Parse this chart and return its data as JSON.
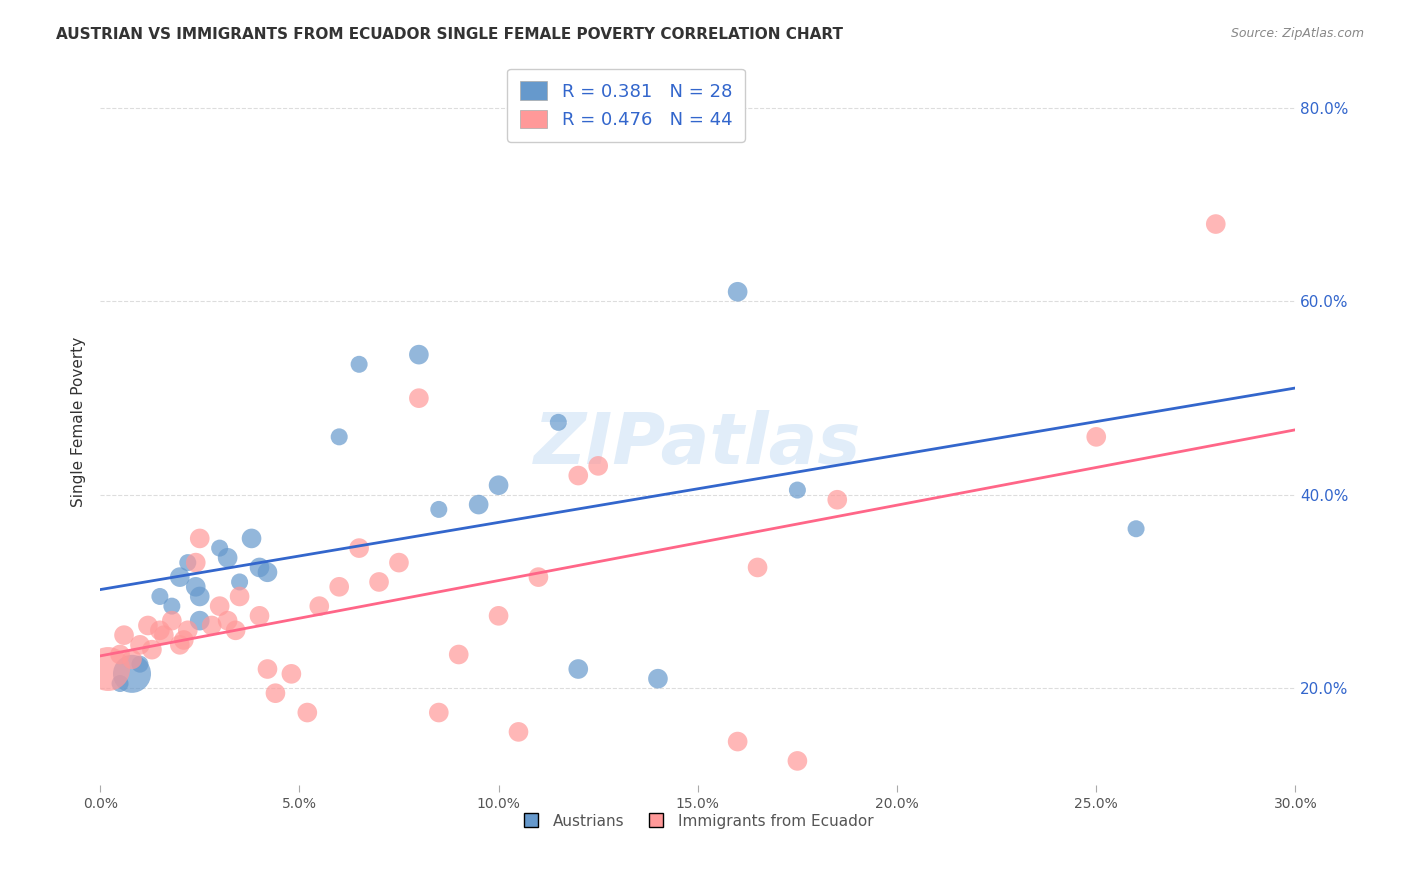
{
  "title": "AUSTRIAN VS IMMIGRANTS FROM ECUADOR SINGLE FEMALE POVERTY CORRELATION CHART",
  "source": "Source: ZipAtlas.com",
  "ylabel": "Single Female Poverty",
  "xlim": [
    0.0,
    0.3
  ],
  "ylim": [
    0.1,
    0.85
  ],
  "ytick_labels": [
    "20.0%",
    "40.0%",
    "60.0%",
    "80.0%"
  ],
  "ytick_values": [
    0.2,
    0.4,
    0.6,
    0.8
  ],
  "xtick_labels": [
    "0.0%",
    "5.0%",
    "10.0%",
    "15.0%",
    "20.0%",
    "25.0%",
    "30.0%"
  ],
  "xtick_values": [
    0.0,
    0.05,
    0.1,
    0.15,
    0.2,
    0.25,
    0.3
  ],
  "legend_labels": [
    "Austrians",
    "Immigrants from Ecuador"
  ],
  "blue_color": "#6699CC",
  "pink_color": "#FF9999",
  "blue_line_color": "#3366CC",
  "pink_line_color": "#FF6688",
  "blue_R": 0.381,
  "blue_N": 28,
  "pink_R": 0.476,
  "pink_N": 44,
  "blue_scatter_x": [
    0.005,
    0.008,
    0.01,
    0.015,
    0.018,
    0.02,
    0.022,
    0.024,
    0.025,
    0.025,
    0.03,
    0.032,
    0.035,
    0.038,
    0.04,
    0.042,
    0.06,
    0.065,
    0.08,
    0.085,
    0.095,
    0.1,
    0.115,
    0.12,
    0.14,
    0.16,
    0.175,
    0.26
  ],
  "blue_scatter_y": [
    0.205,
    0.215,
    0.225,
    0.295,
    0.285,
    0.315,
    0.33,
    0.305,
    0.27,
    0.295,
    0.345,
    0.335,
    0.31,
    0.355,
    0.325,
    0.32,
    0.46,
    0.535,
    0.545,
    0.385,
    0.39,
    0.41,
    0.475,
    0.22,
    0.21,
    0.61,
    0.405,
    0.365
  ],
  "blue_scatter_size": [
    60,
    300,
    60,
    60,
    60,
    80,
    60,
    80,
    80,
    80,
    60,
    80,
    60,
    80,
    80,
    80,
    60,
    60,
    80,
    60,
    80,
    80,
    60,
    80,
    80,
    80,
    60,
    60
  ],
  "pink_scatter_x": [
    0.002,
    0.005,
    0.006,
    0.008,
    0.01,
    0.012,
    0.013,
    0.015,
    0.016,
    0.018,
    0.02,
    0.021,
    0.022,
    0.024,
    0.025,
    0.028,
    0.03,
    0.032,
    0.034,
    0.035,
    0.04,
    0.042,
    0.044,
    0.048,
    0.052,
    0.055,
    0.06,
    0.065,
    0.07,
    0.075,
    0.08,
    0.085,
    0.09,
    0.1,
    0.105,
    0.11,
    0.12,
    0.125,
    0.16,
    0.165,
    0.175,
    0.185,
    0.25,
    0.28
  ],
  "pink_scatter_y": [
    0.22,
    0.235,
    0.255,
    0.23,
    0.245,
    0.265,
    0.24,
    0.26,
    0.255,
    0.27,
    0.245,
    0.25,
    0.26,
    0.33,
    0.355,
    0.265,
    0.285,
    0.27,
    0.26,
    0.295,
    0.275,
    0.22,
    0.195,
    0.215,
    0.175,
    0.285,
    0.305,
    0.345,
    0.31,
    0.33,
    0.5,
    0.175,
    0.235,
    0.275,
    0.155,
    0.315,
    0.42,
    0.43,
    0.145,
    0.325,
    0.125,
    0.395,
    0.46,
    0.68
  ],
  "pink_scatter_size": [
    400,
    80,
    80,
    80,
    80,
    80,
    80,
    80,
    80,
    80,
    80,
    80,
    80,
    80,
    80,
    80,
    80,
    80,
    80,
    80,
    80,
    80,
    80,
    80,
    80,
    80,
    80,
    80,
    80,
    80,
    80,
    80,
    80,
    80,
    80,
    80,
    80,
    80,
    80,
    80,
    80,
    80,
    80,
    80
  ],
  "background_color": "#FFFFFF",
  "grid_color": "#DDDDDD",
  "watermark": "ZIPatlas",
  "watermark_color": "#AACCEE"
}
